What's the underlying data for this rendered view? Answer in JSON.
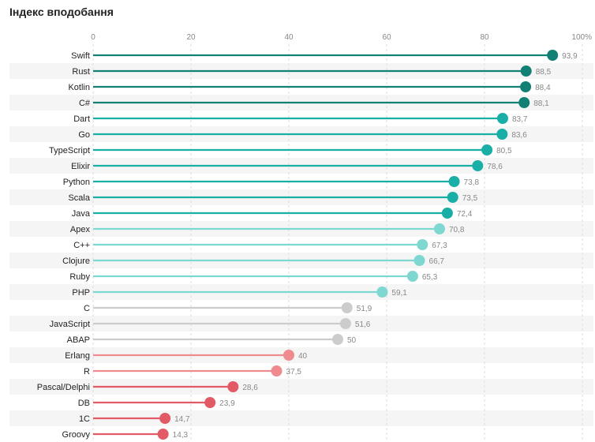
{
  "title": "Індекс вподобання",
  "chart_data": {
    "type": "lollipop",
    "title": "Індекс вподобання",
    "xlim": [
      0,
      100
    ],
    "x_ticks": [
      "0",
      "20",
      "40",
      "60",
      "80",
      "100%"
    ],
    "grid": true,
    "categories": [
      "Swift",
      "Rust",
      "Kotlin",
      "C#",
      "Dart",
      "Go",
      "TypeScript",
      "Elixir",
      "Python",
      "Scala",
      "Java",
      "Apex",
      "C++",
      "Clojure",
      "Ruby",
      "PHP",
      "C",
      "JavaScript",
      "ABAP",
      "Erlang",
      "R",
      "Pascal/Delphi",
      "DB",
      "1C",
      "Groovy"
    ],
    "values": [
      93.9,
      88.5,
      88.4,
      88.1,
      83.7,
      83.6,
      80.5,
      78.6,
      73.8,
      73.5,
      72.4,
      70.8,
      67.3,
      66.7,
      65.3,
      59.1,
      51.9,
      51.6,
      50,
      40,
      37.5,
      28.6,
      23.9,
      14.7,
      14.3
    ],
    "value_labels": [
      "93,9",
      "88,5",
      "88,4",
      "88,1",
      "83,7",
      "83,6",
      "80,5",
      "78,6",
      "73,8",
      "73,5",
      "72,4",
      "70,8",
      "67,3",
      "66,7",
      "65,3",
      "59,1",
      "51,9",
      "51,6",
      "50",
      "40",
      "37,5",
      "28,6",
      "23,9",
      "14,7",
      "14,3"
    ],
    "colors": [
      "#138075",
      "#138075",
      "#138075",
      "#138075",
      "#1aafa6",
      "#1aafa6",
      "#1aafa6",
      "#1aafa6",
      "#1aafa6",
      "#1aafa6",
      "#1aafa6",
      "#7fd7d1",
      "#7fd7d1",
      "#7fd7d1",
      "#7fd7d1",
      "#7fd7d1",
      "#cccccc",
      "#cccccc",
      "#cccccc",
      "#ef8b8f",
      "#ef8b8f",
      "#e25a66",
      "#e25a66",
      "#e25a66",
      "#e25a66"
    ]
  }
}
